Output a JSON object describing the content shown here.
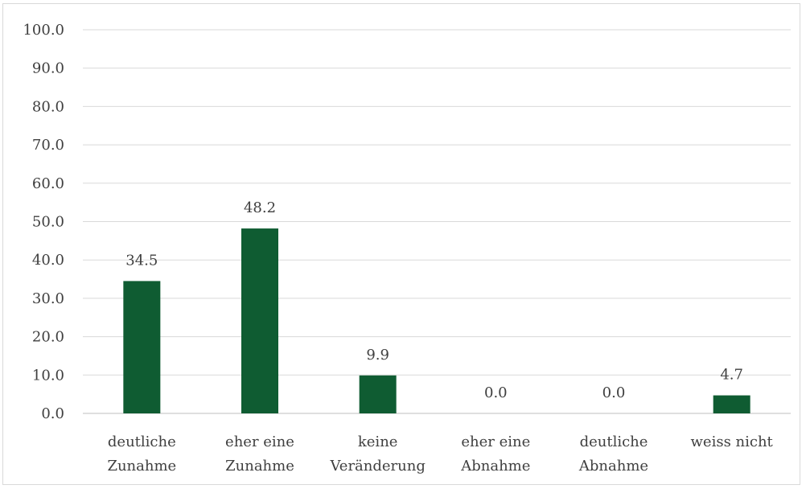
{
  "chart_data": {
    "type": "bar",
    "categories": [
      [
        "deutliche",
        "Zunahme"
      ],
      [
        "eher eine",
        "Zunahme"
      ],
      [
        "keine",
        "Veränderung"
      ],
      [
        "eher eine",
        "Abnahme"
      ],
      [
        "deutliche",
        "Abnahme"
      ],
      [
        "weiss nicht"
      ]
    ],
    "values": [
      34.5,
      48.2,
      9.9,
      0.0,
      0.0,
      4.7
    ],
    "value_labels": [
      "34.5",
      "48.2",
      "9.9",
      "0.0",
      "0.0",
      "4.7"
    ],
    "yticks": [
      "0.0",
      "10.0",
      "20.0",
      "30.0",
      "40.0",
      "50.0",
      "60.0",
      "70.0",
      "80.0",
      "90.0",
      "100.0"
    ],
    "ylim": [
      0,
      100
    ],
    "grid": true,
    "legend": "none",
    "bar_color": "#0f5c32"
  }
}
